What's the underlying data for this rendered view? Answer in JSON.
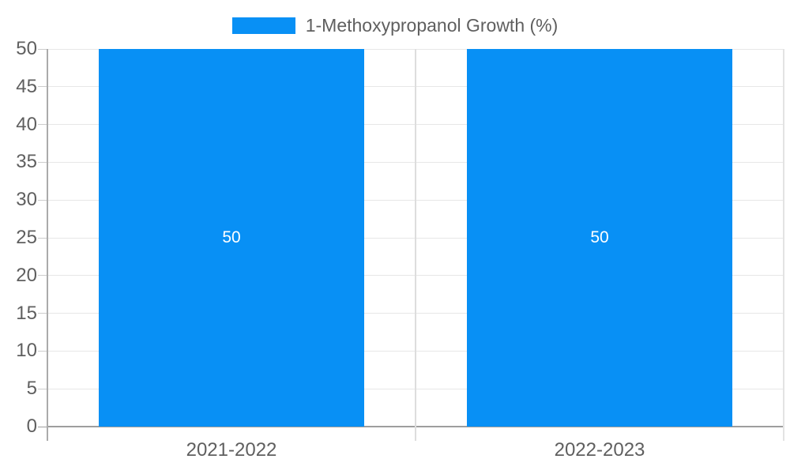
{
  "legend": {
    "label": "1-Methoxypropanol Growth (%)"
  },
  "chart_data": {
    "type": "bar",
    "title": "1-Methoxypropanol Growth (%)",
    "categories": [
      "2021-2022",
      "2022-2023"
    ],
    "values": [
      50,
      50
    ],
    "bar_labels": [
      "50",
      "50"
    ],
    "xlabel": "",
    "ylabel": "",
    "ylim": [
      0,
      50
    ],
    "yticks": [
      0,
      5,
      10,
      15,
      20,
      25,
      30,
      35,
      40,
      45,
      50
    ],
    "grid": true,
    "legend_position": "top-center",
    "colors": {
      "bar": "#0890f5",
      "bar_label_text": "#ffffff",
      "axis_text": "#5f5f5f",
      "gridline": "#e7e7e7",
      "tick": "#cccccc",
      "baseline": "#9e9e9e",
      "y_axis_line": "#ababab",
      "divider": "#dddddd",
      "right_border": "#e3e3e3"
    }
  }
}
